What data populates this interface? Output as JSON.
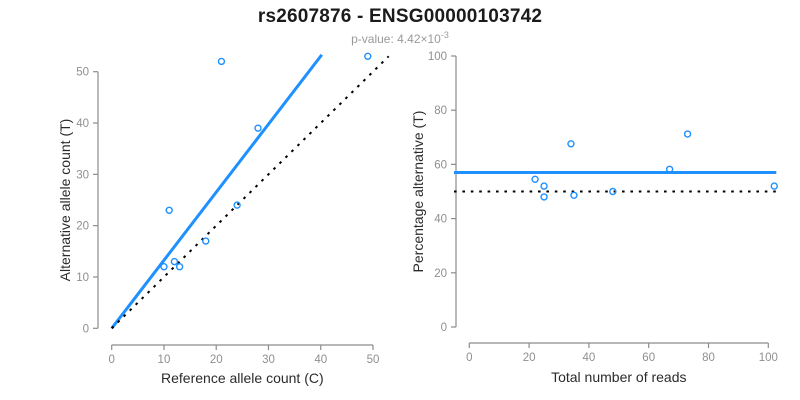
{
  "header": {
    "title": "rs2607876 - ENSG00000103742",
    "subtitle_prefix": "p-value: 4.42×10",
    "subtitle_exponent": "-3"
  },
  "colors": {
    "accent_blue": "#1E90FF",
    "dotted_line_black": "#000000",
    "axis_gray": "#8c8c8c",
    "tick_label_gray": "#8f8f8f",
    "axis_title_dark": "#2b2b2b"
  },
  "chart_data": [
    {
      "type": "scatter",
      "name": "allele-counts",
      "xlabel": "Reference allele count (C)",
      "ylabel": "Alternative allele count (T)",
      "xlim": [
        0,
        53
      ],
      "ylim": [
        0,
        53
      ],
      "xticks": [
        0,
        10,
        20,
        30,
        40,
        50
      ],
      "yticks": [
        0,
        10,
        20,
        30,
        40,
        50
      ],
      "grid": false,
      "points": [
        [
          10,
          12
        ],
        [
          11,
          23
        ],
        [
          12,
          13
        ],
        [
          13,
          12
        ],
        [
          18,
          17
        ],
        [
          21,
          52
        ],
        [
          24,
          24
        ],
        [
          28,
          39
        ],
        [
          49,
          53
        ]
      ],
      "lines": [
        {
          "name": "regression",
          "style": "solid",
          "color": "#1E90FF",
          "x1": 0,
          "y1": 0,
          "x2": 40.2,
          "y2": 53.3
        },
        {
          "name": "identity",
          "style": "dotted",
          "color": "#000000",
          "x1": 0,
          "y1": 0,
          "x2": 53,
          "y2": 53
        }
      ]
    },
    {
      "type": "scatter",
      "name": "percentage-vs-reads",
      "xlabel": "Total number of reads",
      "ylabel": "Percentage alternative (T)",
      "xlim": [
        0,
        103
      ],
      "ylim": [
        0,
        100
      ],
      "xticks": [
        0,
        20,
        40,
        60,
        80,
        100
      ],
      "yticks": [
        0,
        20,
        40,
        60,
        80,
        100
      ],
      "grid": false,
      "points": [
        [
          22,
          54.5
        ],
        [
          25,
          52
        ],
        [
          25,
          48
        ],
        [
          34,
          67.6
        ],
        [
          35,
          48.6
        ],
        [
          48,
          50
        ],
        [
          67,
          58.2
        ],
        [
          73,
          71.2
        ],
        [
          102,
          52
        ]
      ],
      "lines": [
        {
          "name": "fitted-percentage",
          "style": "solid",
          "color": "#1E90FF",
          "y": 57
        },
        {
          "name": "expected-percentage",
          "style": "dotted",
          "color": "#000000",
          "y": 50
        }
      ]
    }
  ]
}
